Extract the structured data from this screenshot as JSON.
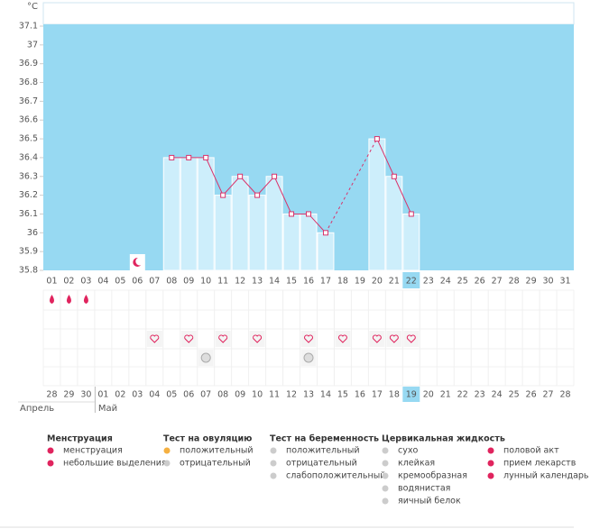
{
  "chart_data": {
    "type": "bar",
    "y_label": "°C",
    "categories": [
      "01",
      "02",
      "03",
      "04",
      "05",
      "06",
      "07",
      "08",
      "09",
      "10",
      "11",
      "12",
      "13",
      "14",
      "15",
      "16",
      "17",
      "18",
      "19",
      "20",
      "21",
      "22",
      "23",
      "24",
      "25",
      "26",
      "27",
      "28",
      "29",
      "30",
      "31"
    ],
    "values": [
      null,
      null,
      null,
      null,
      null,
      null,
      null,
      36.4,
      36.4,
      36.4,
      36.2,
      36.3,
      36.2,
      36.3,
      36.1,
      36.1,
      36.0,
      null,
      null,
      36.5,
      36.3,
      36.1,
      null,
      null,
      null,
      null,
      null,
      null,
      null,
      null,
      null
    ],
    "color": "#cdeefb",
    "line_color": "#d9336b",
    "background": "#97d9f2",
    "ylim": [
      35.8,
      37.1
    ],
    "yticks": [
      35.8,
      35.9,
      36,
      36.1,
      36.2,
      36.3,
      36.4,
      36.5,
      36.6,
      36.7,
      36.8,
      36.9,
      37,
      37.1
    ]
  },
  "cycle_days": [
    "28",
    "29",
    "30",
    "01",
    "02",
    "03",
    "04",
    "05",
    "06",
    "07",
    "08",
    "09",
    "10",
    "11",
    "12",
    "13",
    "14",
    "15",
    "16",
    "17",
    "18",
    "19",
    "20",
    "21",
    "22",
    "23",
    "24",
    "25",
    "26",
    "27",
    "28"
  ],
  "cycle_day_colors": [
    "#e0245e",
    "#e0245e",
    "#e0245e",
    "#555",
    "#555",
    "#555",
    "#e0245e",
    "#e0245e",
    "#555",
    "#555",
    "#555",
    "#555",
    "#555",
    "#e0245e",
    "#e0245e",
    "#555",
    "#555",
    "#555",
    "#555",
    "#555",
    "#e0245e",
    "#555",
    "#555",
    "#555",
    "#555",
    "#555",
    "#555",
    "#e0245e",
    "#e0245e",
    "#555",
    "#555"
  ],
  "months": [
    "Апрель",
    "Май"
  ],
  "legend": {
    "groups": [
      {
        "title": "Менструация",
        "items": [
          "менструация",
          "небольшие выделения"
        ]
      },
      {
        "title": "Тест на овуляцию",
        "items": [
          "положительный",
          "отрицательный"
        ]
      },
      {
        "title": "Тест на беременность",
        "items": [
          "положительный",
          "отрицательный",
          "слабоположительный"
        ]
      },
      {
        "title": "Цервикальная жидкость",
        "items": [
          "сухо",
          "клейкая",
          "кремообразная",
          "водянистая",
          "яичный белок"
        ]
      },
      {
        "items": [
          "половой акт",
          "прием лекарств",
          "лунный календарь"
        ]
      }
    ]
  }
}
